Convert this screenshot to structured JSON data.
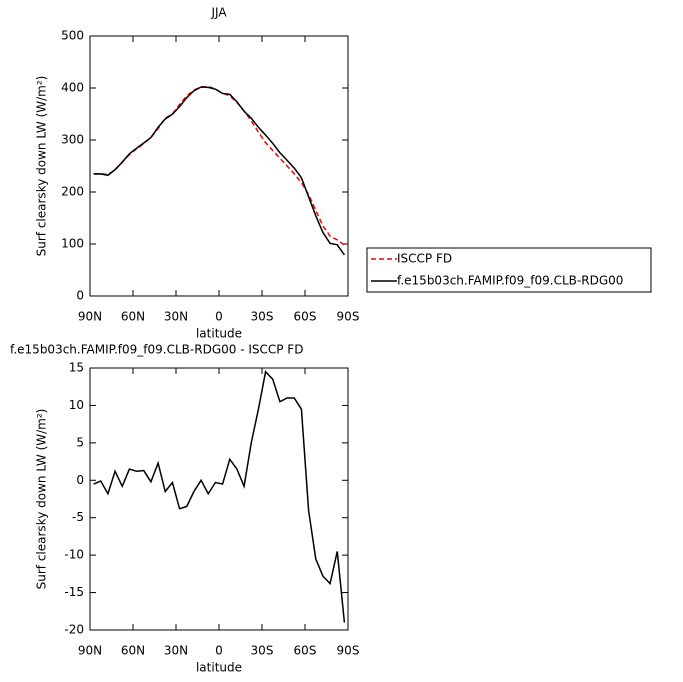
{
  "chart_data": [
    {
      "type": "line",
      "title": "JJA",
      "xlabel": "latitude",
      "ylabel": "Surf clearsky down LW (W/m²)",
      "x": [
        87.5,
        82.5,
        77.5,
        72.5,
        67.5,
        62.5,
        57.5,
        52.5,
        47.5,
        42.5,
        37.5,
        32.5,
        27.5,
        22.5,
        17.5,
        12.5,
        7.5,
        2.5,
        -2.5,
        -7.5,
        -12.5,
        -17.5,
        -22.5,
        -27.5,
        -32.5,
        -37.5,
        -42.5,
        -47.5,
        -52.5,
        -57.5,
        -62.5,
        -67.5,
        -72.5,
        -77.5,
        -82.5,
        -87.5
      ],
      "series": [
        {
          "name": "ISCCP FD",
          "color": "#ff0000",
          "dash": true,
          "values": [
            235,
            235,
            234,
            242,
            258,
            272,
            283,
            293,
            305,
            322,
            342,
            350,
            368,
            385,
            396,
            402,
            403,
            398,
            390,
            385,
            372,
            356,
            337,
            315,
            295,
            280,
            265,
            250,
            235,
            218,
            195,
            165,
            135,
            115,
            108,
            98
          ]
        },
        {
          "name": "f.e15b03ch.FAMIP.f09_f09.CLB-RDG00",
          "color": "#000000",
          "dash": false,
          "values": [
            234.5,
            234.9,
            232.2,
            243.2,
            257.2,
            273.5,
            284.2,
            294.3,
            304.8,
            324.3,
            340.5,
            349.7,
            364.2,
            381.5,
            394.5,
            402,
            401.2,
            397.7,
            389.5,
            387.8,
            373.5,
            355.2,
            342,
            324.5,
            309.5,
            293.5,
            275.5,
            261,
            246,
            227.5,
            191,
            154.5,
            122.2,
            101.2,
            98.5,
            79
          ]
        }
      ],
      "xlim": [
        90,
        -90
      ],
      "xticks": [
        {
          "value": 90,
          "label": "90N"
        },
        {
          "value": 60,
          "label": "60N"
        },
        {
          "value": 30,
          "label": "30N"
        },
        0,
        {
          "value": -30,
          "label": "30S"
        },
        {
          "value": -60,
          "label": "60S"
        },
        {
          "value": -90,
          "label": "90S"
        }
      ],
      "ylim": [
        0,
        500
      ],
      "yticks": [
        0,
        100,
        200,
        300,
        400,
        500
      ],
      "legend": "right"
    },
    {
      "type": "line",
      "title": "f.e15b03ch.FAMIP.f09_f09.CLB-RDG00 - ISCCP FD",
      "xlabel": "latitude",
      "ylabel": "Surf clearsky down LW (W/m²)",
      "x": [
        87.5,
        82.5,
        77.5,
        72.5,
        67.5,
        62.5,
        57.5,
        52.5,
        47.5,
        42.5,
        37.5,
        32.5,
        27.5,
        22.5,
        17.5,
        12.5,
        7.5,
        2.5,
        -2.5,
        -7.5,
        -12.5,
        -17.5,
        -22.5,
        -27.5,
        -32.5,
        -37.5,
        -42.5,
        -47.5,
        -52.5,
        -57.5,
        -62.5,
        -67.5,
        -72.5,
        -77.5,
        -82.5,
        -87.5
      ],
      "color": "#000000",
      "values": [
        -0.5,
        -0.1,
        -1.8,
        1.2,
        -0.8,
        1.5,
        1.2,
        1.3,
        -0.2,
        2.3,
        -1.5,
        -0.3,
        -3.8,
        -3.5,
        -1.5,
        0,
        -1.8,
        -0.3,
        -0.5,
        2.8,
        1.5,
        -0.8,
        5,
        9.5,
        14.5,
        13.5,
        10.5,
        11,
        11,
        9.5,
        -4,
        -10.5,
        -12.8,
        -13.8,
        -9.5,
        -19
      ],
      "xlim": [
        90,
        -90
      ],
      "xticks": [
        {
          "value": 90,
          "label": "90N"
        },
        {
          "value": 60,
          "label": "60N"
        },
        {
          "value": 30,
          "label": "30N"
        },
        0,
        {
          "value": -30,
          "label": "30S"
        },
        {
          "value": -60,
          "label": "60S"
        },
        {
          "value": -90,
          "label": "90S"
        }
      ],
      "ylim": [
        -20,
        15
      ],
      "yticks": [
        -20,
        -15,
        -10,
        -5,
        0,
        5,
        10,
        15
      ]
    }
  ]
}
